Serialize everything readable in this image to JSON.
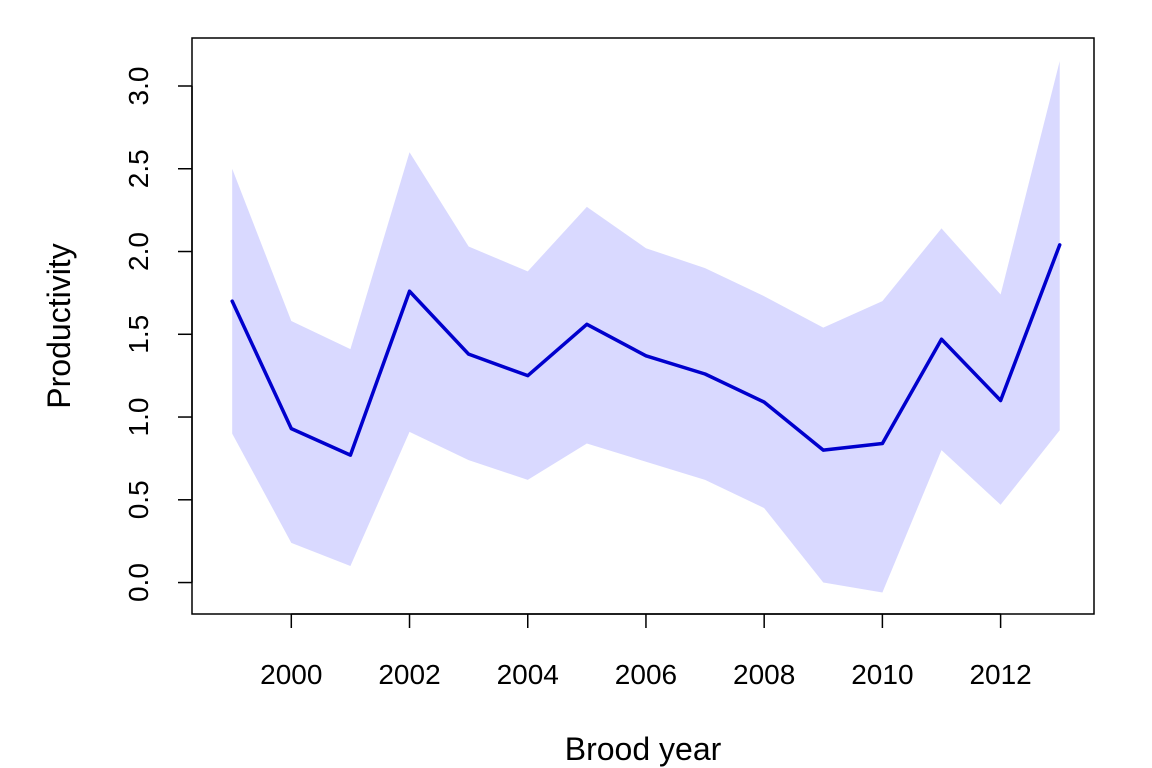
{
  "chart_data": {
    "type": "line",
    "title": "",
    "xlabel": "Brood year",
    "ylabel": "Productivity",
    "x": [
      1999,
      2000,
      2001,
      2002,
      2003,
      2004,
      2005,
      2006,
      2007,
      2008,
      2009,
      2010,
      2011,
      2012,
      2013
    ],
    "series": [
      {
        "name": "",
        "color": "#0000cd",
        "values": [
          1.7,
          0.93,
          0.77,
          1.76,
          1.38,
          1.25,
          1.56,
          1.37,
          1.26,
          1.09,
          0.8,
          0.84,
          1.47,
          1.1,
          2.04
        ]
      }
    ],
    "band": {
      "color": "#d9d9ff",
      "lower": [
        0.9,
        0.24,
        0.1,
        0.91,
        0.74,
        0.62,
        0.84,
        0.73,
        0.62,
        0.45,
        0.0,
        -0.06,
        0.8,
        0.47,
        0.92
      ],
      "upper": [
        2.5,
        1.58,
        1.41,
        2.6,
        2.03,
        1.88,
        2.27,
        2.02,
        1.9,
        1.73,
        1.54,
        1.7,
        2.14,
        1.74,
        3.15
      ]
    },
    "xlim": [
      1998.32,
      2013.58
    ],
    "ylim": [
      -0.19,
      3.29
    ],
    "xticks": [
      2000,
      2002,
      2004,
      2006,
      2008,
      2010,
      2012
    ],
    "xtick_labels": [
      "2000",
      "2002",
      "2004",
      "2006",
      "2008",
      "2010",
      "2012"
    ],
    "yticks": [
      0.0,
      0.5,
      1.0,
      1.5,
      2.0,
      2.5,
      3.0
    ],
    "ytick_labels": [
      "0.0",
      "0.5",
      "1.0",
      "1.5",
      "2.0",
      "2.5",
      "3.0"
    ],
    "grid": false,
    "legend": "none"
  }
}
